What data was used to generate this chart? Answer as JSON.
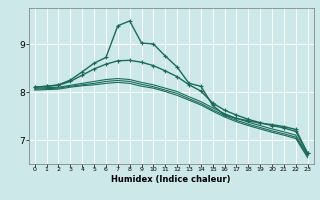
{
  "xlabel": "Humidex (Indice chaleur)",
  "xlim": [
    -0.5,
    23.5
  ],
  "ylim": [
    6.5,
    9.75
  ],
  "yticks": [
    7,
    8,
    9
  ],
  "xticks": [
    0,
    1,
    2,
    3,
    4,
    5,
    6,
    7,
    8,
    9,
    10,
    11,
    12,
    13,
    14,
    15,
    16,
    17,
    18,
    19,
    20,
    21,
    22,
    23
  ],
  "bg_color": "#cce8e8",
  "grid_color": "#ffffff",
  "line_color": "#1a6b5a",
  "lines": [
    {
      "x": [
        0,
        1,
        2,
        3,
        4,
        5,
        6,
        7,
        8,
        9,
        10,
        11,
        12,
        13,
        14,
        15,
        16,
        17,
        18,
        19,
        20,
        21,
        22,
        23
      ],
      "y": [
        8.1,
        8.12,
        8.15,
        8.25,
        8.42,
        8.6,
        8.72,
        9.38,
        9.48,
        9.02,
        9.0,
        8.75,
        8.52,
        8.18,
        8.12,
        7.72,
        7.52,
        7.45,
        7.4,
        7.35,
        7.32,
        7.28,
        7.22,
        6.72
      ],
      "marker": "+",
      "lw": 1.0
    },
    {
      "x": [
        0,
        1,
        2,
        3,
        4,
        5,
        6,
        7,
        8,
        9,
        10,
        11,
        12,
        13,
        14,
        15,
        16,
        17,
        18,
        19,
        20,
        21,
        22,
        23
      ],
      "y": [
        8.1,
        8.12,
        8.14,
        8.22,
        8.35,
        8.48,
        8.58,
        8.65,
        8.66,
        8.62,
        8.55,
        8.44,
        8.32,
        8.15,
        8.02,
        7.77,
        7.62,
        7.52,
        7.43,
        7.36,
        7.3,
        7.25,
        7.18,
        6.72
      ],
      "marker": "+",
      "lw": 1.0
    },
    {
      "x": [
        0,
        1,
        2,
        3,
        4,
        5,
        6,
        7,
        8,
        9,
        10,
        11,
        12,
        13,
        14,
        15,
        16,
        17,
        18,
        19,
        20,
        21,
        22,
        23
      ],
      "y": [
        8.08,
        8.09,
        8.1,
        8.14,
        8.18,
        8.22,
        8.26,
        8.28,
        8.26,
        8.2,
        8.15,
        8.08,
        8.01,
        7.9,
        7.8,
        7.67,
        7.55,
        7.45,
        7.37,
        7.3,
        7.23,
        7.17,
        7.1,
        6.69
      ],
      "marker": null,
      "lw": 0.8
    },
    {
      "x": [
        0,
        1,
        2,
        3,
        4,
        5,
        6,
        7,
        8,
        9,
        10,
        11,
        12,
        13,
        14,
        15,
        16,
        17,
        18,
        19,
        20,
        21,
        22,
        23
      ],
      "y": [
        8.06,
        8.07,
        8.08,
        8.12,
        8.15,
        8.18,
        8.22,
        8.24,
        8.22,
        8.16,
        8.11,
        8.04,
        7.97,
        7.86,
        7.76,
        7.63,
        7.51,
        7.41,
        7.33,
        7.26,
        7.19,
        7.13,
        7.06,
        6.66
      ],
      "marker": null,
      "lw": 0.8
    },
    {
      "x": [
        0,
        1,
        2,
        3,
        4,
        5,
        6,
        7,
        8,
        9,
        10,
        11,
        12,
        13,
        14,
        15,
        16,
        17,
        18,
        19,
        20,
        21,
        22,
        23
      ],
      "y": [
        8.04,
        8.05,
        8.06,
        8.1,
        8.13,
        8.15,
        8.18,
        8.2,
        8.18,
        8.12,
        8.08,
        8.01,
        7.93,
        7.83,
        7.73,
        7.6,
        7.48,
        7.38,
        7.3,
        7.23,
        7.16,
        7.1,
        7.03,
        6.63
      ],
      "marker": null,
      "lw": 0.8
    }
  ]
}
